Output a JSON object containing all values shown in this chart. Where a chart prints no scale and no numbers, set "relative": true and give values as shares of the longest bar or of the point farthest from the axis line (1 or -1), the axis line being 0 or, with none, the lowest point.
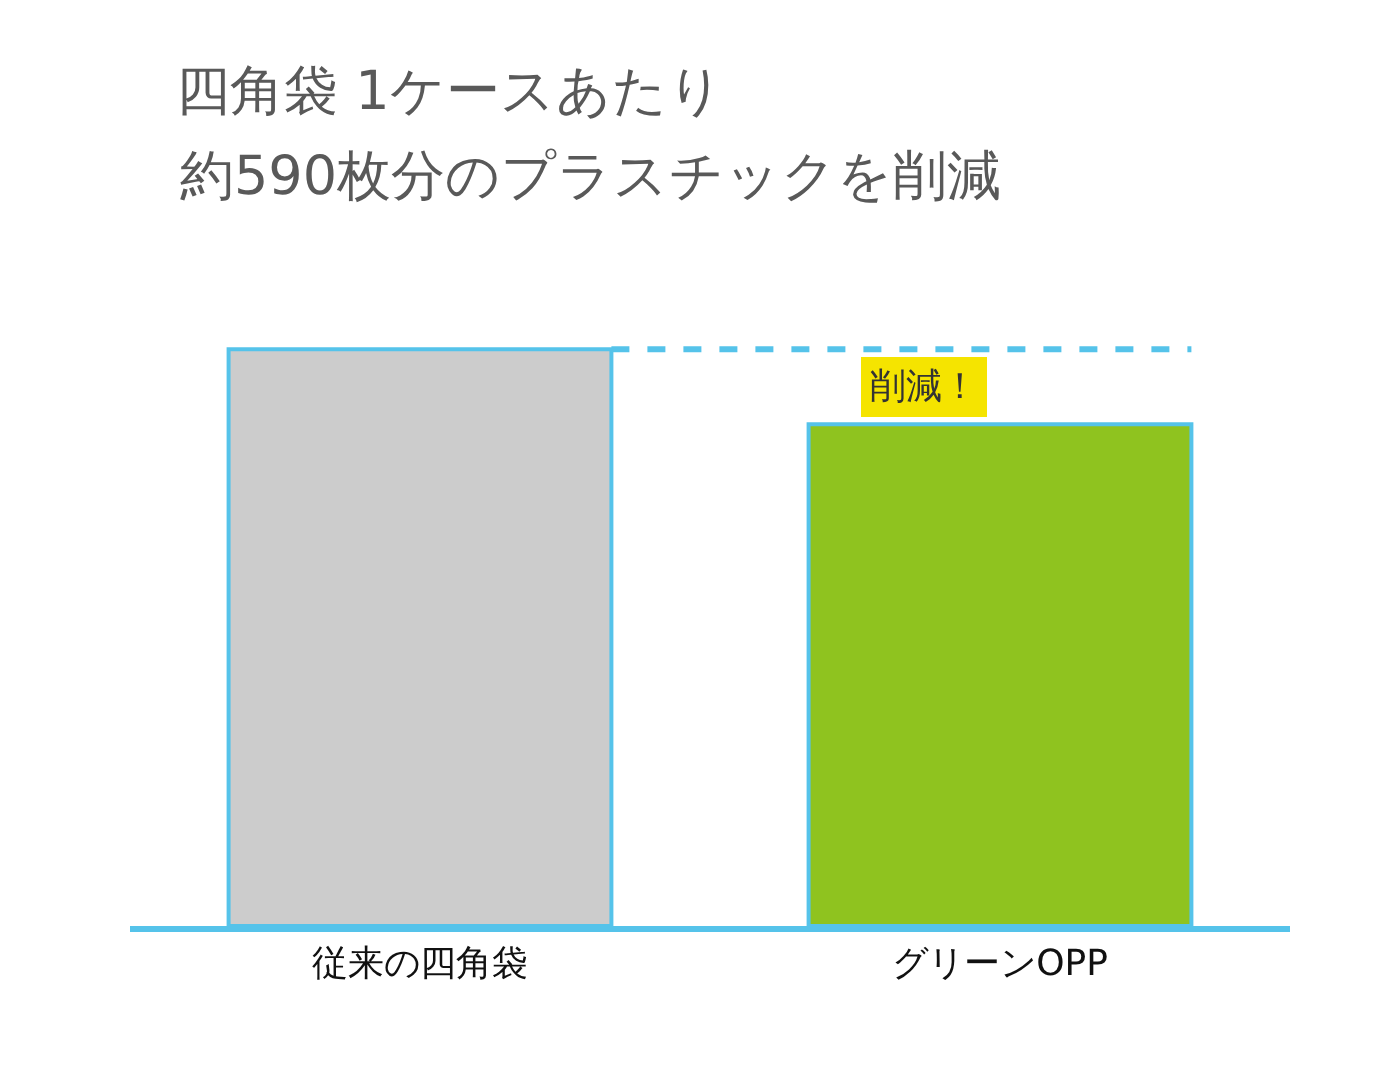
{
  "chart_data": {
    "type": "bar",
    "title": "四角袋 1ケースあたり",
    "subtitle": "約590枚分のプラスチックを削減",
    "relative": true,
    "categories": [
      "従来の四角袋",
      "グリーンOPP"
    ],
    "values": [
      1,
      0.87
    ],
    "colors": [
      "#cccccc",
      "#8fc31f"
    ],
    "ref_lines": [
      {
        "axis": "y",
        "value": 1,
        "color": "#55c3ea",
        "line_style": "dashed"
      }
    ],
    "annotations": [
      "削減！"
    ],
    "legend": false
  }
}
